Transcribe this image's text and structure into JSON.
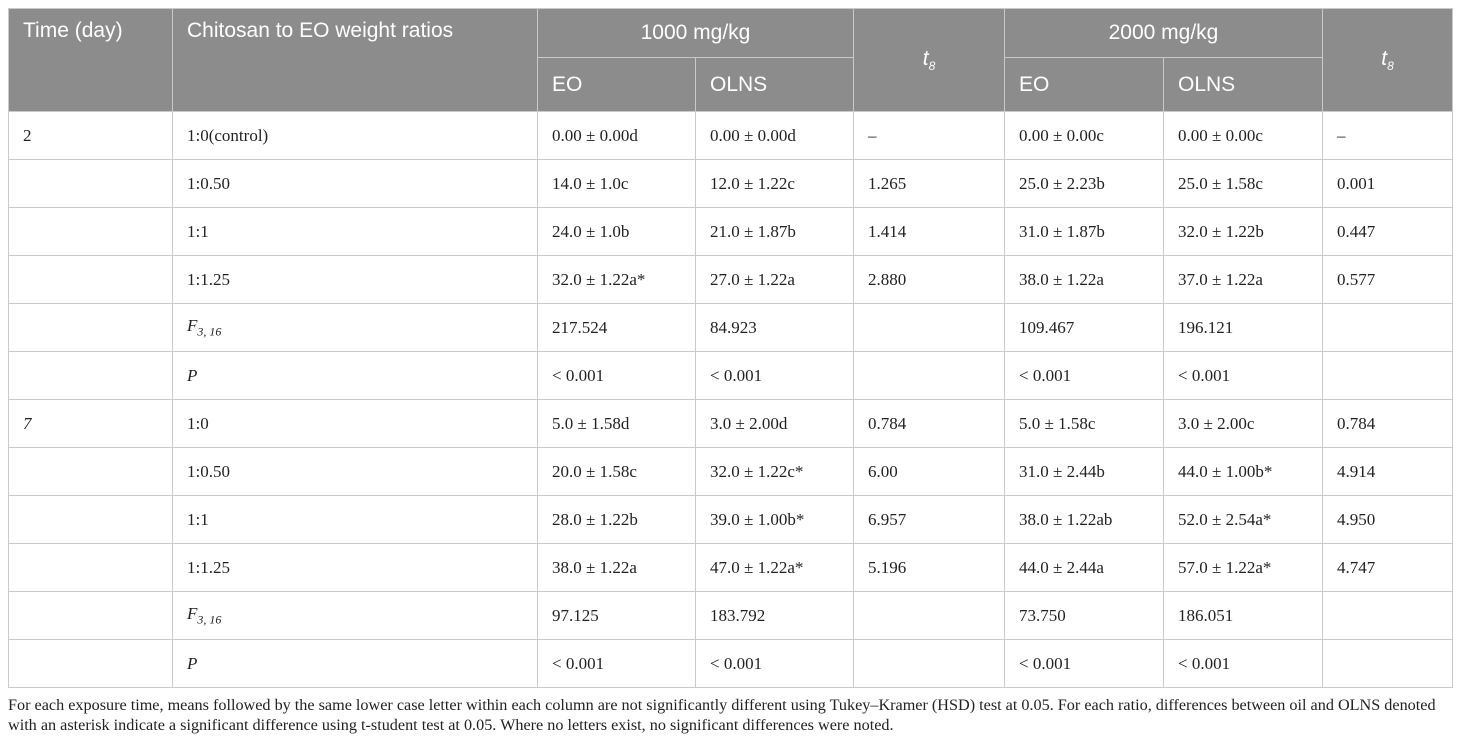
{
  "header": {
    "time": "Time (day)",
    "ratio": "Chitosan to EO weight ratios",
    "dose1": "1000 mg/kg",
    "dose2": "2000 mg/kg",
    "t8_base": "t",
    "t8_sub": "8",
    "eo": "EO",
    "olns": "OLNS"
  },
  "rows": [
    {
      "time": "2",
      "ratio": "1:0(control)",
      "eo1": "0.00 ± 0.00d",
      "olns1": "0.00 ± 0.00d",
      "t1": "–",
      "eo2": "0.00 ± 0.00c",
      "olns2": "0.00 ± 0.00c",
      "t2": "–"
    },
    {
      "time": "",
      "ratio": "1:0.50",
      "eo1": "14.0 ± 1.0c",
      "olns1": "12.0 ± 1.22c",
      "t1": "1.265",
      "eo2": "25.0 ± 2.23b",
      "olns2": "25.0 ± 1.58c",
      "t2": "0.001"
    },
    {
      "time": "",
      "ratio": "1:1",
      "eo1": "24.0 ± 1.0b",
      "olns1": "21.0 ± 1.87b",
      "t1": "1.414",
      "eo2": "31.0 ± 1.87b",
      "olns2": "32.0 ± 1.22b",
      "t2": "0.447"
    },
    {
      "time": "",
      "ratio": "1:1.25",
      "eo1": "32.0 ± 1.22a*",
      "olns1": "27.0 ± 1.22a",
      "t1": "2.880",
      "eo2": "38.0 ± 1.22a",
      "olns2": "37.0 ± 1.22a",
      "t2": "0.577"
    },
    {
      "time": "",
      "ratio_base": "F",
      "ratio_sub": "3, 16",
      "eo1": "217.524",
      "olns1": "84.923",
      "t1": "",
      "eo2": "109.467",
      "olns2": "196.121",
      "t2": ""
    },
    {
      "time": "",
      "ratio_italic": "P",
      "eo1": "< 0.001",
      "olns1": "< 0.001",
      "t1": "",
      "eo2": "< 0.001",
      "olns2": "< 0.001",
      "t2": ""
    },
    {
      "time": "7",
      "ratio": "1:0",
      "eo1": "5.0 ± 1.58d",
      "olns1": "3.0 ± 2.00d",
      "t1": "0.784",
      "eo2": "5.0 ± 1.58c",
      "olns2": "3.0 ± 2.00c",
      "t2": "0.784"
    },
    {
      "time": "",
      "ratio": "1:0.50",
      "eo1": "20.0 ± 1.58c",
      "olns1": "32.0 ± 1.22c*",
      "t1": "6.00",
      "eo2": "31.0 ± 2.44b",
      "olns2": "44.0 ± 1.00b*",
      "t2": "4.914"
    },
    {
      "time": "",
      "ratio": "1:1",
      "eo1": "28.0 ± 1.22b",
      "olns1": "39.0 ± 1.00b*",
      "t1": "6.957",
      "eo2": "38.0 ± 1.22ab",
      "olns2": "52.0 ± 2.54a*",
      "t2": "4.950"
    },
    {
      "time": "",
      "ratio": "1:1.25",
      "eo1": "38.0 ± 1.22a",
      "olns1": "47.0 ± 1.22a*",
      "t1": "5.196",
      "eo2": "44.0 ± 2.44a",
      "olns2": "57.0 ± 1.22a*",
      "t2": "4.747"
    },
    {
      "time": "",
      "ratio_base": "F",
      "ratio_sub": "3, 16",
      "eo1": "97.125",
      "olns1": "183.792",
      "t1": "",
      "eo2": "73.750",
      "olns2": "186.051",
      "t2": ""
    },
    {
      "time": "",
      "ratio_italic": "P",
      "eo1": "< 0.001",
      "olns1": "< 0.001",
      "t1": "",
      "eo2": "< 0.001",
      "olns2": "< 0.001",
      "t2": ""
    }
  ],
  "footnote": "For each exposure time, means followed by the same lower case letter within each column are not significantly different using Tukey–Kramer (HSD) test at 0.05. For each ratio, differences between oil and OLNS denoted with an asterisk indicate a significant difference using t-student test at 0.05. Where no letters exist, no significant differences were noted.",
  "colors": {
    "header_bg": "#8c8c8c",
    "header_text": "#ffffff",
    "border": "#c9c9c9"
  }
}
